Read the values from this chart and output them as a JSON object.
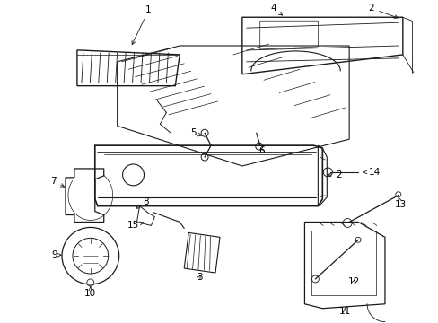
{
  "background_color": "#ffffff",
  "line_color": "#1a1a1a",
  "text_color": "#000000",
  "fig_width": 4.89,
  "fig_height": 3.6,
  "dpi": 100
}
